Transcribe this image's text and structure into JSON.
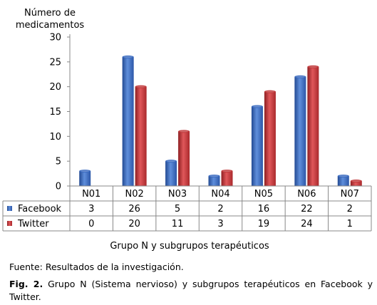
{
  "chart_data": {
    "type": "bar",
    "ylabel": "Número de medicamentos",
    "ylabel_lines": [
      "Número de",
      "medicamentos"
    ],
    "xlabel": "Grupo N y subgrupos terapéuticos",
    "categories": [
      "N01",
      "N02",
      "N03",
      "N04",
      "N05",
      "N06",
      "N07"
    ],
    "series": [
      {
        "name": "Facebook",
        "values": [
          3,
          26,
          5,
          2,
          16,
          22,
          2
        ],
        "color": "#3B6BC0"
      },
      {
        "name": "Twitter",
        "values": [
          0,
          20,
          11,
          3,
          19,
          24,
          1
        ],
        "color": "#C0383A"
      }
    ],
    "ylim": [
      0,
      30
    ],
    "yticks": [
      0,
      5,
      10,
      15,
      20,
      25,
      30
    ],
    "grid": false,
    "data_table": true,
    "legend": "in data table"
  },
  "source_note": "Fuente: Resultados de la investigación.",
  "caption": {
    "label": "Fig. 2.",
    "text": " Grupo N (Sistema nervioso) y subgrupos terapéuticos en Facebook y Twitter."
  }
}
